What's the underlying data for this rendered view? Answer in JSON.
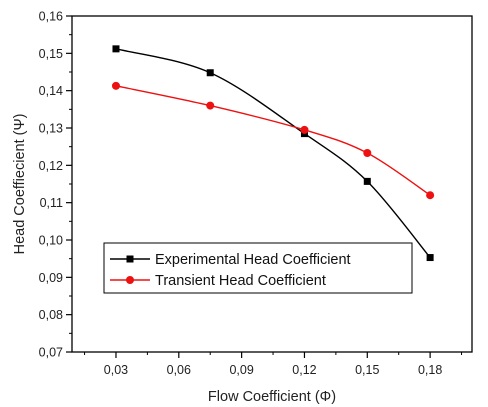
{
  "chart_data": {
    "type": "line",
    "xlabel": "Flow Coefficient (Φ)",
    "ylabel": "Head Coeffiecient (Ψ)",
    "xlim": [
      0.009,
      0.2
    ],
    "ylim": [
      0.07,
      0.16
    ],
    "x_ticks": [
      0.03,
      0.06,
      0.09,
      0.12,
      0.15,
      0.18
    ],
    "x_tick_labels": [
      "0,03",
      "0,06",
      "0,09",
      "0,12",
      "0,15",
      "0,18"
    ],
    "y_ticks": [
      0.07,
      0.08,
      0.09,
      0.1,
      0.11,
      0.12,
      0.13,
      0.14,
      0.15,
      0.16
    ],
    "y_tick_labels": [
      "0,07",
      "0,08",
      "0,09",
      "0,10",
      "0,11",
      "0,12",
      "0,13",
      "0,14",
      "0,15",
      "0,16"
    ],
    "grid": false,
    "legend_position": "lower-left",
    "x": [
      0.03,
      0.075,
      0.12,
      0.15,
      0.18
    ],
    "series": [
      {
        "name": "Experimental Head Coefficient",
        "values": [
          0.1512,
          0.1448,
          0.1285,
          0.1157,
          0.0953
        ],
        "color": "#000000",
        "marker": "square"
      },
      {
        "name": "Transient Head Coefficient",
        "values": [
          0.1413,
          0.136,
          0.1295,
          0.1233,
          0.112
        ],
        "color": "#ee1111",
        "marker": "circle"
      }
    ]
  }
}
